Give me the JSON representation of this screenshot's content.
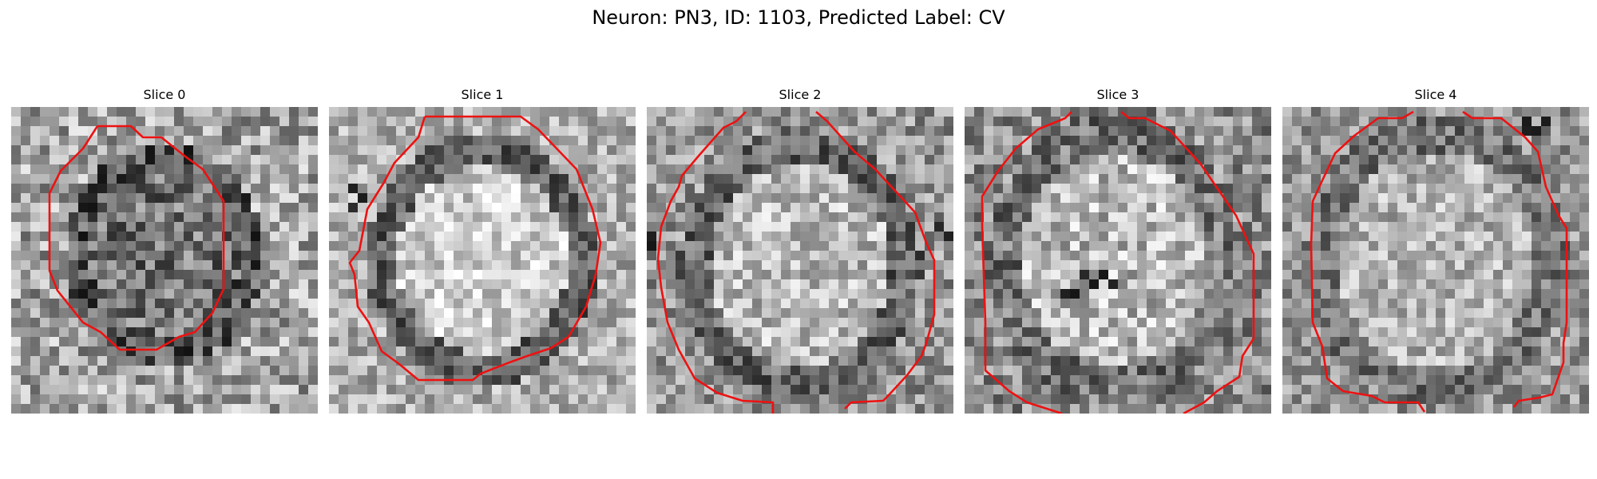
{
  "figure": {
    "title": "Neuron: PN3, ID: 1103, Predicted Label: CV",
    "contour_color": "#ee1111"
  },
  "slices": [
    {
      "title": "Slice 0"
    },
    {
      "title": "Slice 1"
    },
    {
      "title": "Slice 2"
    },
    {
      "title": "Slice 3"
    },
    {
      "title": "Slice 4"
    }
  ]
}
